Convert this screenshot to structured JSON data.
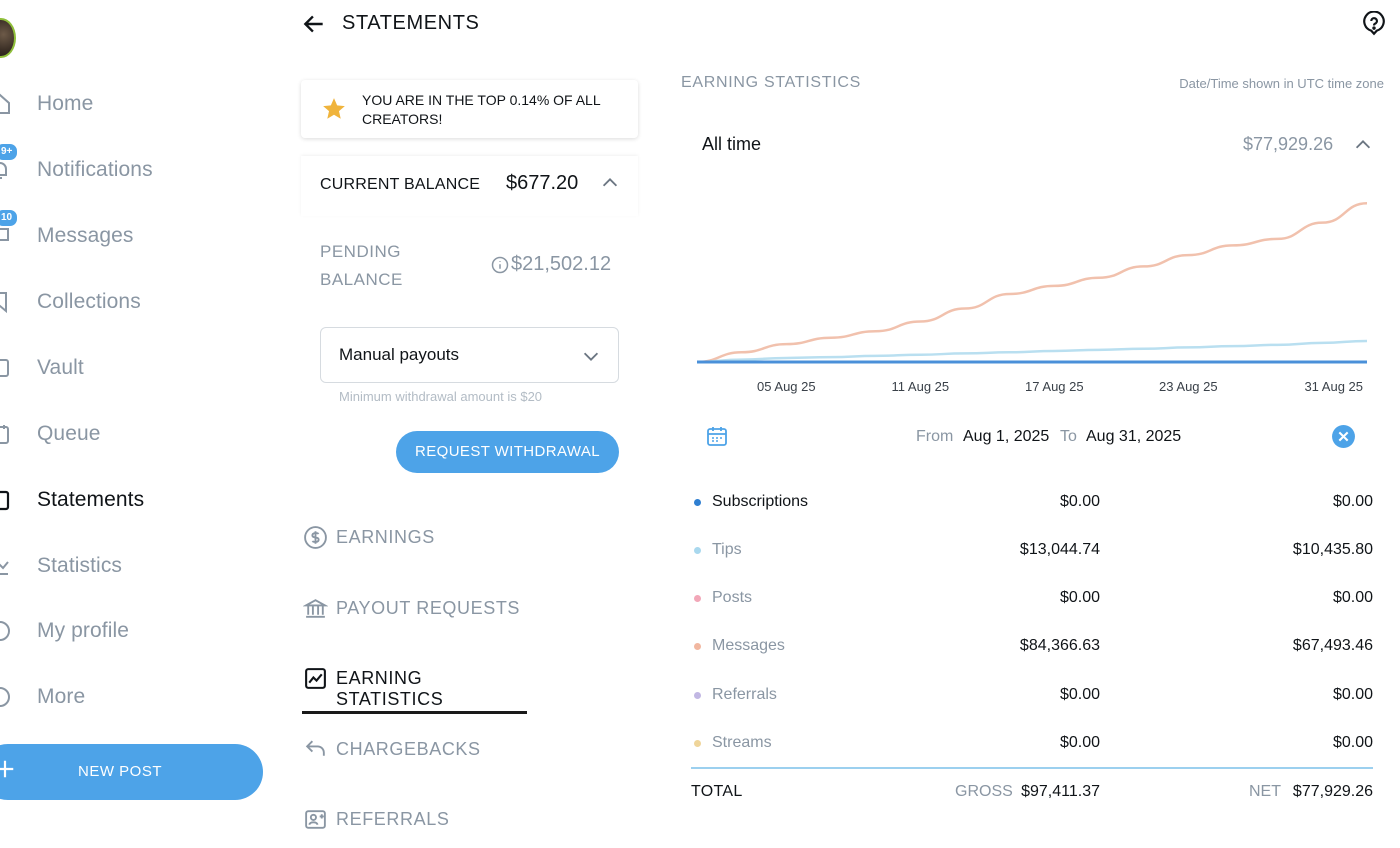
{
  "sidebar": {
    "items": [
      {
        "label": "Home",
        "icon": "home-icon",
        "active": false,
        "badge": ""
      },
      {
        "label": "Notifications",
        "icon": "bell-icon",
        "active": false,
        "badge": "9+"
      },
      {
        "label": "Messages",
        "icon": "chat-icon",
        "active": false,
        "badge": "10"
      },
      {
        "label": "Collections",
        "icon": "bookmark-icon",
        "active": false,
        "badge": ""
      },
      {
        "label": "Vault",
        "icon": "vault-icon",
        "active": false,
        "badge": ""
      },
      {
        "label": "Queue",
        "icon": "calendar-icon",
        "active": false,
        "badge": ""
      },
      {
        "label": "Statements",
        "icon": "statements-icon",
        "active": true,
        "badge": ""
      },
      {
        "label": "Statistics",
        "icon": "statistics-icon",
        "active": false,
        "badge": ""
      },
      {
        "label": "My profile",
        "icon": "profile-icon",
        "active": false,
        "badge": ""
      },
      {
        "label": "More",
        "icon": "more-icon",
        "active": false,
        "badge": ""
      }
    ],
    "new_post_label": "NEW POST"
  },
  "header": {
    "title": "STATEMENTS"
  },
  "top_creator": {
    "text": "YOU ARE IN THE TOP 0.14% OF ALL CREATORS!"
  },
  "balance": {
    "current_label": "CURRENT BALANCE",
    "current_value": "$677.20",
    "pending_label": "PENDING BALANCE",
    "pending_value": "$21,502.12"
  },
  "payout": {
    "selected": "Manual payouts",
    "min_note": "Minimum withdrawal amount is $20",
    "request_button": "REQUEST WITHDRAWAL"
  },
  "menu": {
    "items": [
      {
        "label": "EARNINGS",
        "icon": "dollar-circle-icon",
        "active": false
      },
      {
        "label": "PAYOUT REQUESTS",
        "icon": "bank-icon",
        "active": false
      },
      {
        "label": "EARNING STATISTICS",
        "icon": "chart-icon",
        "active": true
      },
      {
        "label": "CHARGEBACKS",
        "icon": "undo-icon",
        "active": false
      },
      {
        "label": "REFERRALS",
        "icon": "referral-icon",
        "active": false
      }
    ]
  },
  "stats": {
    "title": "EARNING STATISTICS",
    "timezone_note": "Date/Time shown in UTC time zone",
    "period_label": "All time",
    "period_total": "$77,929.26",
    "from_label": "From",
    "from_date": "Aug 1, 2025",
    "to_label": "To",
    "to_date": "Aug 31, 2025",
    "rows": [
      {
        "name": "Subscriptions",
        "gross": "$0.00",
        "net": "$0.00",
        "color": "#2f7fd1"
      },
      {
        "name": "Tips",
        "gross": "$13,044.74",
        "net": "$10,435.80",
        "color": "#a9d8ee"
      },
      {
        "name": "Posts",
        "gross": "$0.00",
        "net": "$0.00",
        "color": "#f2a7b8"
      },
      {
        "name": "Messages",
        "gross": "$84,366.63",
        "net": "$67,493.46",
        "color": "#f1b7a0"
      },
      {
        "name": "Referrals",
        "gross": "$0.00",
        "net": "$0.00",
        "color": "#c1b7e3"
      },
      {
        "name": "Streams",
        "gross": "$0.00",
        "net": "$0.00",
        "color": "#efd59a"
      }
    ],
    "total_label": "TOTAL",
    "gross_label": "GROSS",
    "gross_total": "$97,411.37",
    "net_label": "NET",
    "net_total": "$77,929.26"
  },
  "chart_data": {
    "type": "line",
    "x_tick_labels": [
      "05 Aug 25",
      "11 Aug 25",
      "17 Aug 25",
      "23 Aug 25",
      "31 Aug 25"
    ],
    "x_days": [
      1,
      3,
      5,
      7,
      9,
      11,
      13,
      15,
      17,
      19,
      21,
      23,
      25,
      27,
      29,
      31
    ],
    "series": [
      {
        "name": "Messages",
        "color": "#f1c1ad",
        "values": [
          0,
          6,
          11,
          15,
          19,
          25,
          33,
          42,
          47,
          52,
          59,
          66,
          72,
          76,
          86,
          98
        ]
      },
      {
        "name": "Tips",
        "color": "#b9dff0",
        "values": [
          0,
          1.5,
          2.5,
          3,
          3.8,
          4.5,
          5.3,
          6,
          6.8,
          7.5,
          8.2,
          9,
          9.8,
          10.6,
          11.8,
          13
        ]
      },
      {
        "name": "Subscriptions",
        "color": "#4a90d9",
        "values": [
          0,
          0,
          0,
          0,
          0,
          0,
          0,
          0,
          0,
          0,
          0,
          0,
          0,
          0,
          0,
          0
        ]
      }
    ],
    "ylim": [
      0,
      100
    ]
  },
  "colors": {
    "accent": "#4da3e8",
    "muted": "#8a96a3"
  }
}
